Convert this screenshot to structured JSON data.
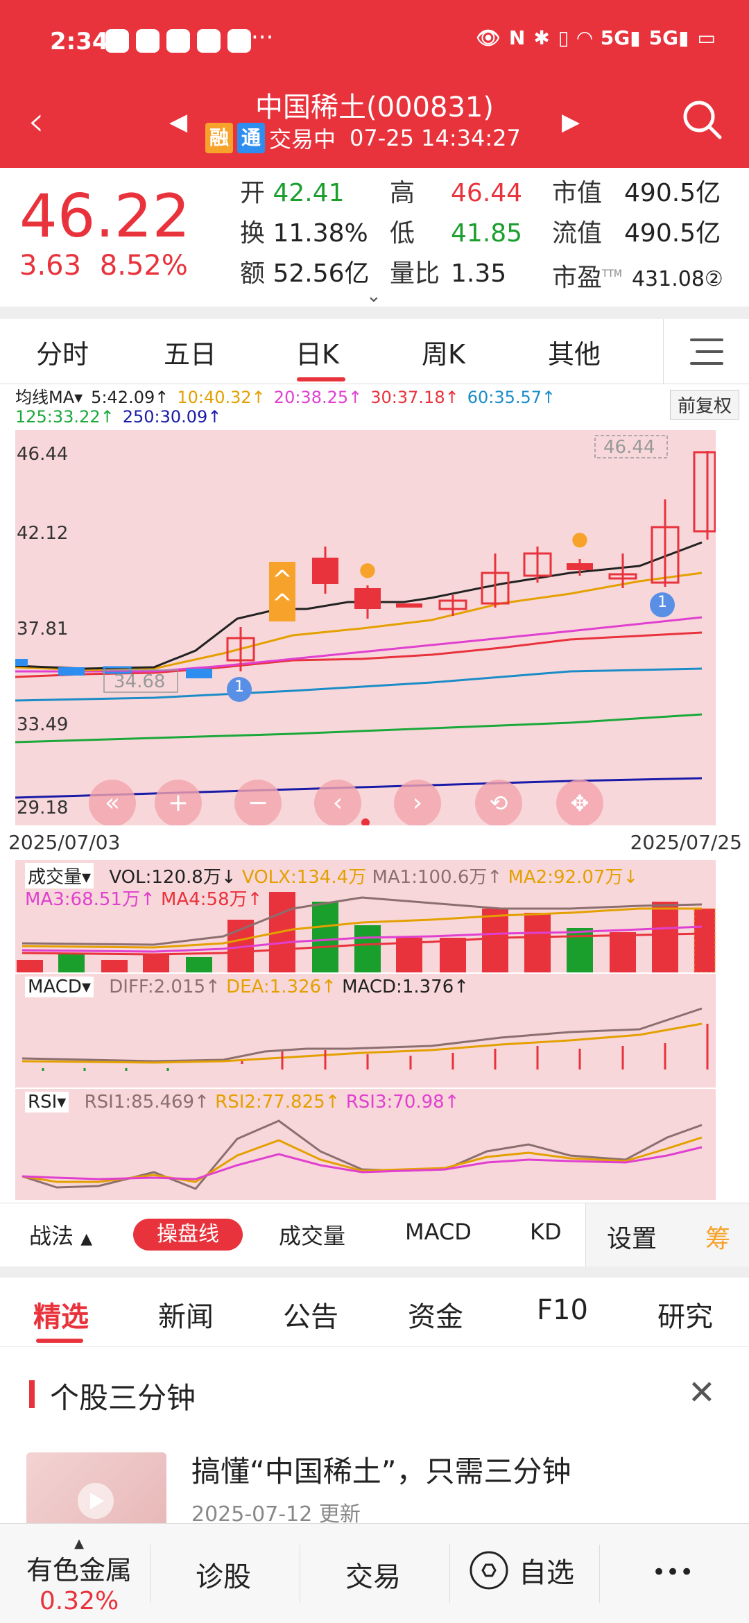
{
  "status": {
    "time": "2:34",
    "dots": "···",
    "icons": [
      "eye-icon",
      "nfc-icon",
      "bluetooth-icon",
      "vibrate-icon",
      "wifi-icon",
      "5G",
      "5G",
      "battery-icon"
    ]
  },
  "header": {
    "title": "中国稀土(000831)",
    "badge_rong": "融",
    "badge_tong": "通",
    "status_text": "交易中",
    "datetime": "07-25 14:34:27"
  },
  "quote": {
    "price": "46.22",
    "change": "3.63",
    "change_pct": "8.52%",
    "open_label": "开",
    "open": "42.41",
    "high_label": "高",
    "high": "46.44",
    "mcap_label": "市值",
    "mcap": "490.5亿",
    "turnover_label": "换",
    "turnover": "11.38%",
    "low_label": "低",
    "low": "41.85",
    "float_label": "流值",
    "float_mcap": "490.5亿",
    "amount_label": "额",
    "amount": "52.56亿",
    "volratio_label": "量比",
    "volratio": "1.35",
    "pe_label": "市盈",
    "pe_sup": "TTM",
    "pe": "431.08②"
  },
  "tabs": [
    "分时",
    "五日",
    "日K",
    "周K",
    "其他"
  ],
  "ma_line": {
    "label": "均线MA",
    "items": [
      {
        "text": "5:42.09↑",
        "color": "#222222"
      },
      {
        "text": "10:40.32↑",
        "color": "#e3a000"
      },
      {
        "text": "20:38.25↑",
        "color": "#e040d0"
      },
      {
        "text": "30:37.18↑",
        "color": "#e8323c"
      },
      {
        "text": "60:35.57↑",
        "color": "#1b8cc7"
      },
      {
        "text": "125:33.22↑",
        "color": "#1aa83a"
      },
      {
        "text": "250:30.09↑",
        "color": "#1a1aa8"
      }
    ],
    "adjust_btn": "前复权"
  },
  "kchart": {
    "y_labels": [
      "46.44",
      "42.12",
      "37.81",
      "33.49",
      "29.18"
    ],
    "high_marker": "46.44",
    "low_marker": "34.68",
    "markers": [
      "1",
      "1"
    ],
    "start_date": "2025/07/03",
    "end_date": "2025/07/25"
  },
  "volume": {
    "label": "成交量",
    "vol": "VOL:120.8万↓",
    "volx": "VOLX:134.4万",
    "ma1": "MA1:100.6万↑",
    "ma2": "MA2:92.07万↓",
    "ma3": "MA3:68.51万↑",
    "ma4": "MA4:58万↑"
  },
  "macd": {
    "label": "MACD",
    "diff": "DIFF:2.015↑",
    "dea": "DEA:1.326↑",
    "macd": "MACD:1.376↑"
  },
  "rsi": {
    "label": "RSI",
    "rsi1": "RSI1:85.469↑",
    "rsi2": "RSI2:77.825↑",
    "rsi3": "RSI3:70.98↑"
  },
  "toolbar": {
    "zhanfa": "战法",
    "caopan": "操盘线",
    "chengjiao": "成交量",
    "macd": "MACD",
    "kd": "KD",
    "settings": "设置",
    "chou": "筹"
  },
  "news_tabs": [
    "精选",
    "新闻",
    "公告",
    "资金",
    "F10",
    "研究"
  ],
  "section": {
    "title": "个股三分钟",
    "news_title": "搞懂“中国稀土”，只需三分钟",
    "news_date": "2025-07-12 更新"
  },
  "bottom_nav": {
    "sector": "有色金属",
    "sector_pct": "0.32%",
    "diagnose": "诊股",
    "trade": "交易",
    "watchlist": "自选",
    "more": "•••"
  }
}
